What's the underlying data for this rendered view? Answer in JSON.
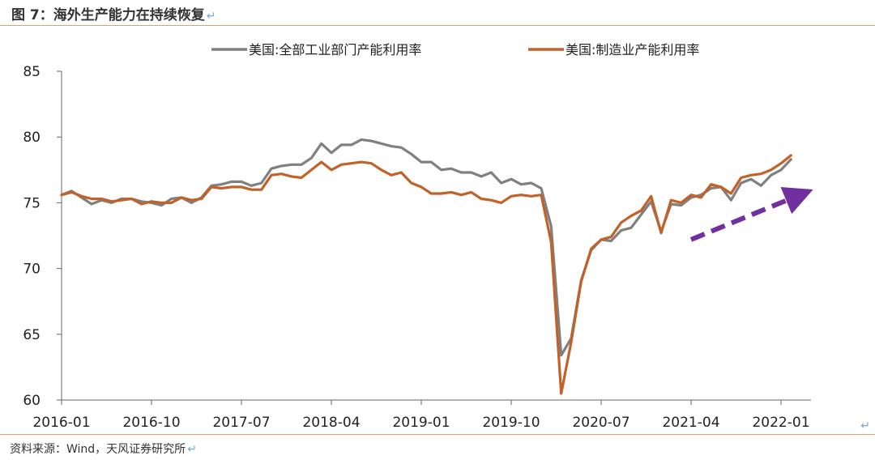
{
  "figure": {
    "title": "图 7：海外生产能力在持续恢复",
    "source": "资料来源：Wind，天风证券研究所",
    "return_mark": "↵"
  },
  "chart_data": {
    "type": "line",
    "title": "",
    "xlabel": "",
    "ylabel": "",
    "ylim": [
      60,
      85
    ],
    "yticks": [
      60,
      65,
      70,
      75,
      80,
      85
    ],
    "xticks": [
      "2016-01",
      "2016-10",
      "2017-07",
      "2018-04",
      "2019-01",
      "2019-10",
      "2020-07",
      "2021-04",
      "2022-01"
    ],
    "x_start": "2016-01",
    "x_end": "2022-04",
    "grid": false,
    "legend_position": "top",
    "series": [
      {
        "name": "美国:全部工业部门产能利用率",
        "color": "#808080",
        "values": [
          75.6,
          75.9,
          75.4,
          74.9,
          75.2,
          75.0,
          75.3,
          75.3,
          75.1,
          75.0,
          74.8,
          75.3,
          75.4,
          75.0,
          75.4,
          76.3,
          76.4,
          76.6,
          76.6,
          76.3,
          76.5,
          77.6,
          77.8,
          77.9,
          77.9,
          78.4,
          79.5,
          78.8,
          79.4,
          79.4,
          79.8,
          79.7,
          79.5,
          79.3,
          79.2,
          78.7,
          78.1,
          78.1,
          77.5,
          77.6,
          77.3,
          77.3,
          77.0,
          77.3,
          76.5,
          76.8,
          76.4,
          76.5,
          76.1,
          73.2,
          63.4,
          64.7,
          69.1,
          71.4,
          72.2,
          72.1,
          72.9,
          73.1,
          74.1,
          75.1,
          72.8,
          74.9,
          74.8,
          75.4,
          75.6,
          76.1,
          76.2,
          75.2,
          76.5,
          76.8,
          76.3,
          77.1,
          77.5,
          78.3
        ]
      },
      {
        "name": "美国:制造业产能利用率",
        "color": "#c0622a",
        "values": [
          75.6,
          75.8,
          75.5,
          75.3,
          75.3,
          75.1,
          75.2,
          75.3,
          74.9,
          75.1,
          75.0,
          75.0,
          75.4,
          75.2,
          75.3,
          76.2,
          76.1,
          76.2,
          76.2,
          76.0,
          76.0,
          77.1,
          77.2,
          77.0,
          76.9,
          77.5,
          78.1,
          77.5,
          77.9,
          78.0,
          78.1,
          78.0,
          77.5,
          77.1,
          77.3,
          76.5,
          76.2,
          75.7,
          75.7,
          75.8,
          75.6,
          75.8,
          75.3,
          75.2,
          75.0,
          75.5,
          75.6,
          75.5,
          75.6,
          72.0,
          60.5,
          64.4,
          69.0,
          71.5,
          72.2,
          72.4,
          73.5,
          74.0,
          74.4,
          75.5,
          72.7,
          75.2,
          75.0,
          75.6,
          75.4,
          76.4,
          76.2,
          75.7,
          76.9,
          77.1,
          77.2,
          77.5,
          78.0,
          78.6
        ]
      }
    ],
    "annotation": {
      "type": "dashed-arrow",
      "color": "#7030a0",
      "from": [
        "2021-04",
        72.2
      ],
      "to": [
        "2022-04",
        75.9
      ]
    }
  }
}
